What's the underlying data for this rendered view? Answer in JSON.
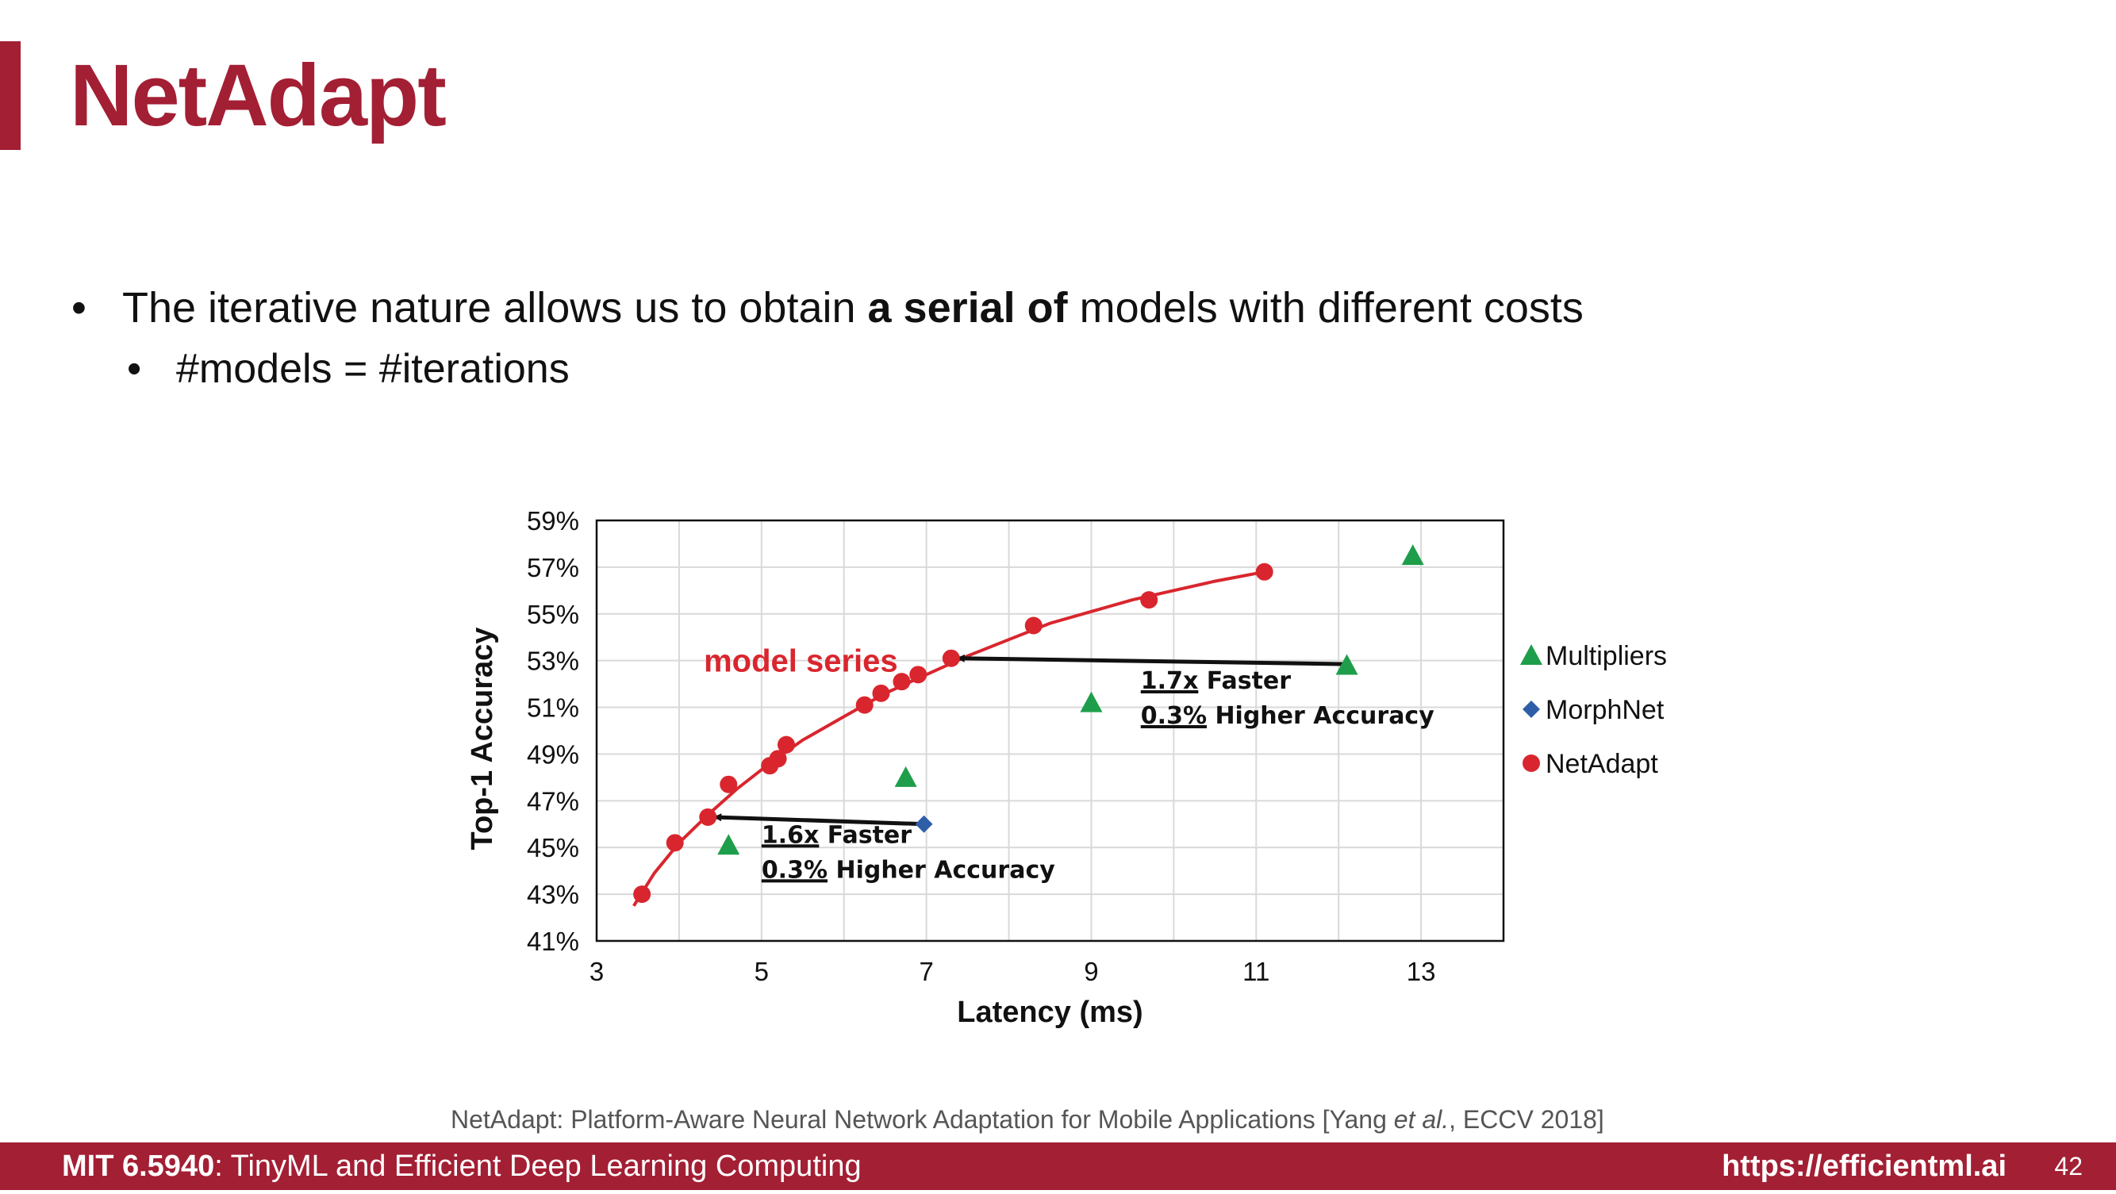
{
  "slide": {
    "title": "NetAdapt",
    "bullet1": {
      "pre": "The iterative nature allows us to obtain ",
      "bold": "a serial of",
      "post": " models with different costs"
    },
    "bullet2": "#models = #iterations",
    "bullet_symbol": "•",
    "citation": {
      "pre": "NetAdapt: Platform-Aware Neural Network Adaptation for Mobile Applications [Yang ",
      "italic": "et al.",
      "post": ", ECCV 2018]"
    },
    "footer": {
      "course_code": "MIT 6.5940",
      "course_name": ": TinyML and Efficient Deep Learning Computing",
      "url": "https://efficientml.ai",
      "page": "42"
    }
  },
  "colors": {
    "brand": "#a31f34",
    "netadapt": "#d9262e",
    "multipliers": "#1e9e4a",
    "morphnet": "#2f5ea8",
    "arrow": "#111111"
  },
  "chart_data": {
    "type": "scatter",
    "xlabel": "Latency (ms)",
    "ylabel": "Top-1 Accuracy",
    "xlim": [
      3,
      14
    ],
    "ylim": [
      41,
      59
    ],
    "xticks": [
      3,
      5,
      7,
      9,
      11,
      13
    ],
    "yticks": [
      41,
      43,
      45,
      47,
      49,
      51,
      53,
      55,
      57,
      59
    ],
    "ytick_suffix": "%",
    "grid": true,
    "legend_position": "right",
    "series": [
      {
        "name": "Multipliers",
        "marker": "triangle",
        "color": "#1e9e4a",
        "x": [
          4.6,
          6.75,
          9.0,
          12.1,
          12.9
        ],
        "y": [
          45.1,
          48.0,
          51.2,
          52.8,
          57.5
        ]
      },
      {
        "name": "MorphNet",
        "marker": "diamond",
        "color": "#2f5ea8",
        "x": [
          6.97
        ],
        "y": [
          46.0
        ]
      },
      {
        "name": "NetAdapt",
        "marker": "circle",
        "color": "#d9262e",
        "x": [
          3.55,
          3.95,
          4.35,
          4.6,
          5.1,
          5.2,
          5.3,
          6.25,
          6.45,
          6.7,
          6.9,
          7.3,
          8.3,
          9.7,
          11.1
        ],
        "y": [
          43.0,
          45.2,
          46.3,
          47.7,
          48.5,
          48.8,
          49.4,
          51.1,
          51.6,
          52.1,
          52.4,
          53.1,
          54.5,
          55.6,
          56.8
        ]
      }
    ],
    "curve": {
      "color": "#d9262e",
      "x": [
        3.45,
        3.7,
        4.0,
        4.35,
        4.7,
        5.1,
        5.5,
        6.0,
        6.5,
        7.0,
        7.5,
        8.0,
        8.5,
        9.0,
        9.5,
        10.0,
        10.5,
        11.1
      ],
      "y": [
        42.5,
        43.9,
        45.2,
        46.4,
        47.5,
        48.6,
        49.6,
        50.6,
        51.6,
        52.4,
        53.2,
        53.9,
        54.6,
        55.1,
        55.6,
        56.0,
        56.4,
        56.8
      ]
    },
    "annotations": [
      {
        "text": "model series",
        "color": "#d9262e",
        "at": [
          4.3,
          53.0
        ]
      },
      {
        "arrow_from": [
          12.1,
          52.85
        ],
        "arrow_to": [
          7.3,
          53.1
        ],
        "line1_under": "1.7x",
        "line1_rest": " Faster",
        "line2_under": "0.3%",
        "line2_rest": " Higher Accuracy",
        "at": [
          9.6,
          51.8
        ]
      },
      {
        "arrow_from": [
          6.97,
          46.0
        ],
        "arrow_to": [
          4.35,
          46.3
        ],
        "line1_under": "1.6x",
        "line1_rest": " Faster",
        "line2_under": "0.3%",
        "line2_rest": " Higher Accuracy",
        "at": [
          5.0,
          45.2
        ]
      }
    ]
  }
}
